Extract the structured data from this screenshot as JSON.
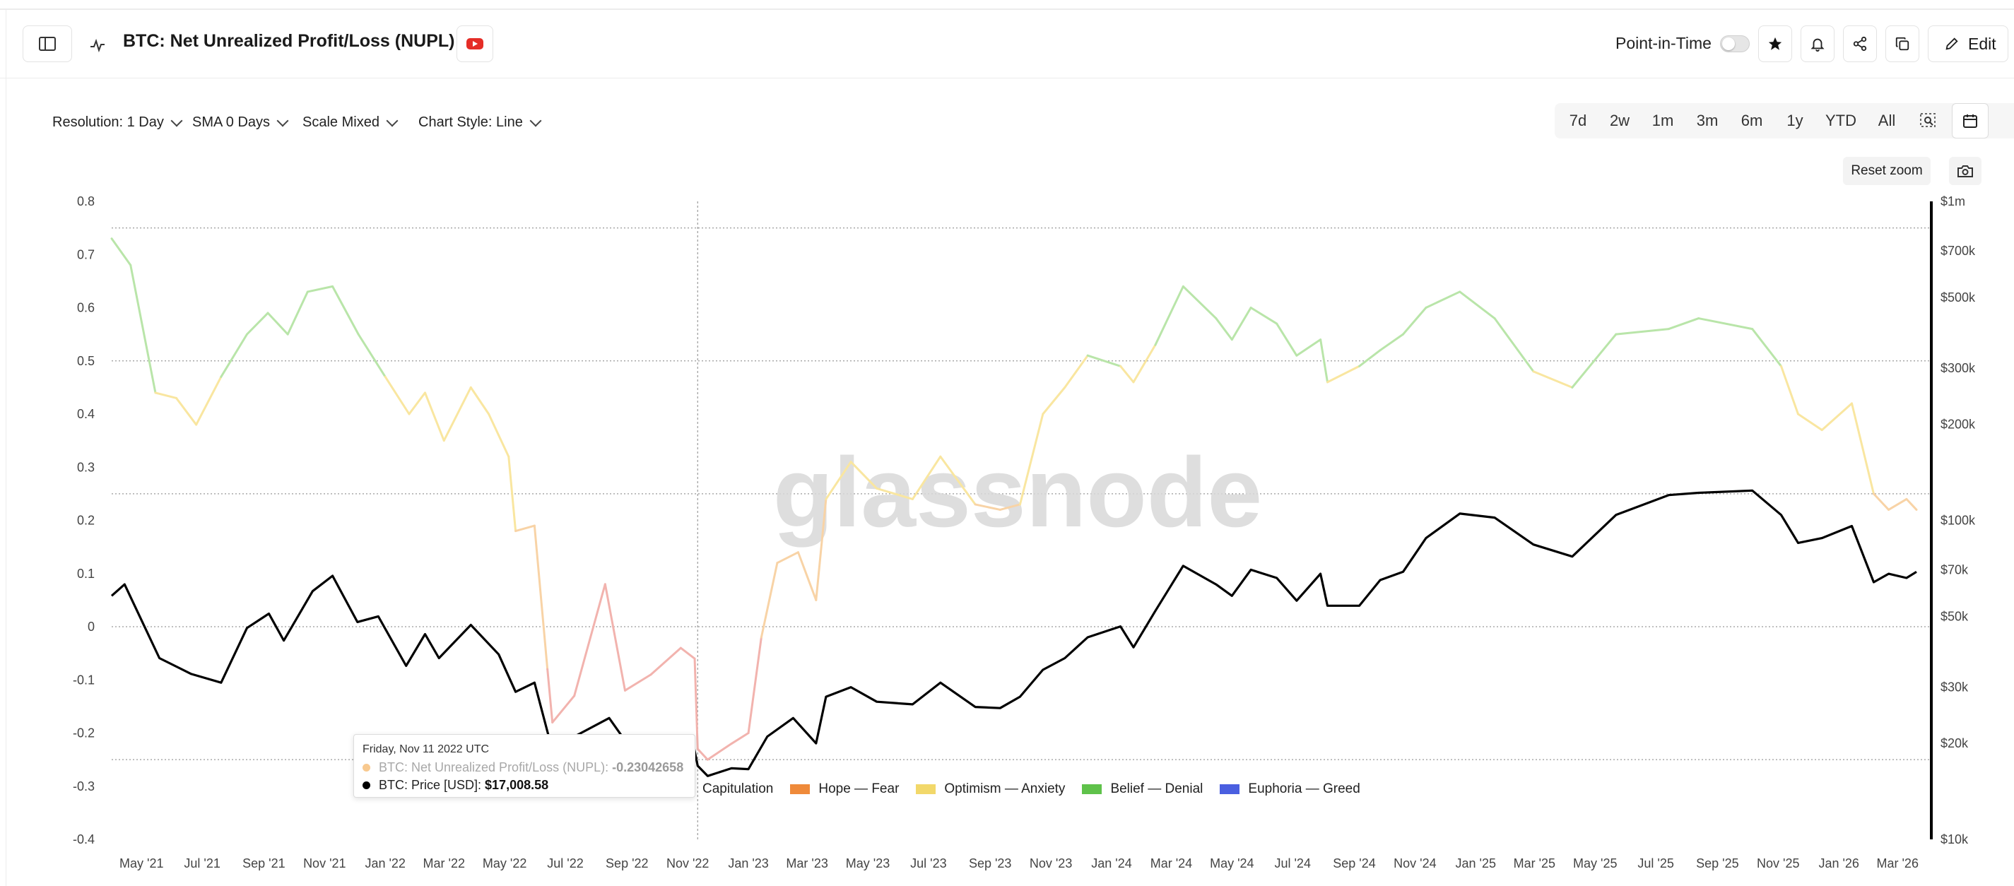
{
  "header": {
    "title": "BTC: Net Unrealized Profit/Loss (NUPL)",
    "point_in_time_label": "Point-in-Time",
    "point_in_time_on": false,
    "edit_label": "Edit"
  },
  "controls": {
    "resolution": "Resolution: 1 Day",
    "sma": "SMA 0 Days",
    "scale": "Scale Mixed",
    "chart_style": "Chart Style: Line"
  },
  "ranges": [
    "7d",
    "2w",
    "1m",
    "3m",
    "6m",
    "1y",
    "YTD",
    "All"
  ],
  "reset_zoom_label": "Reset zoom",
  "watermark": "glassnode",
  "tooltip": {
    "date": "Friday, Nov 11 2022 UTC",
    "nupl_label": "BTC: Net Unrealized Profit/Loss (NUPL):",
    "nupl_value": "-0.23042658",
    "price_label": "BTC: Price [USD]:",
    "price_value": "$17,008.58"
  },
  "legend": [
    {
      "label": "Capitulation",
      "color": "#e06c6c"
    },
    {
      "label": "Hope — Fear",
      "color": "#ef8a3a"
    },
    {
      "label": "Optimism — Anxiety",
      "color": "#f2d86a"
    },
    {
      "label": "Belief — Denial",
      "color": "#5fc24a"
    },
    {
      "label": "Euphoria — Greed",
      "color": "#4a5fe0"
    }
  ],
  "colors": {
    "price_line": "#000000",
    "capitulation": "#f2b3ae",
    "hope": "#f8d3a6",
    "optimism": "#f9e6a0",
    "belief": "#b9e5a9",
    "accent_youtube": "#e52d27"
  },
  "chart_data": {
    "type": "line",
    "title": "BTC: Net Unrealized Profit/Loss (NUPL)",
    "x_tick_labels": [
      "May '21",
      "Jul '21",
      "Sep '21",
      "Nov '21",
      "Jan '22",
      "Mar '22",
      "May '22",
      "Jul '22",
      "Sep '22",
      "Nov '22",
      "Jan '23",
      "Mar '23",
      "May '23",
      "Jul '23",
      "Sep '23",
      "Nov '23",
      "Jan '24",
      "Mar '24",
      "May '24",
      "Jul '24",
      "Sep '24",
      "Nov '24",
      "Jan '25",
      "Mar '25",
      "May '25",
      "Jul '25",
      "Sep '25",
      "Nov '25",
      "Jan '26",
      "Mar '26"
    ],
    "x_range": [
      "2021-04-01",
      "2026-03-20"
    ],
    "y_left": {
      "range": [
        -0.4,
        0.8
      ],
      "tick_labels": [
        "0.8",
        "0.7",
        "0.6",
        "0.5",
        "0.4",
        "0.3",
        "0.2",
        "0.1",
        "0",
        "-0.1",
        "-0.2",
        "-0.3",
        "-0.4"
      ]
    },
    "y_right": {
      "scale": "log",
      "range": [
        10000,
        1000000
      ],
      "tick_labels": [
        "$1m",
        "$700k",
        "$500k",
        "$300k",
        "$200k",
        "$100k",
        "$70k",
        "$50k",
        "$30k",
        "$20k",
        "$10k"
      ]
    },
    "reference_lines_left": [
      0.75,
      0.5,
      0.25,
      0,
      -0.25
    ],
    "grid": false,
    "series": [
      {
        "name": "BTC: Net Unrealized Profit/Loss (NUPL)",
        "axis": "left",
        "x": [
          "2021-04-01",
          "2021-04-20",
          "2021-05-15",
          "2021-06-05",
          "2021-06-25",
          "2021-07-20",
          "2021-08-15",
          "2021-09-05",
          "2021-09-25",
          "2021-10-15",
          "2021-11-09",
          "2021-12-05",
          "2022-01-01",
          "2022-01-25",
          "2022-02-10",
          "2022-03-01",
          "2022-03-28",
          "2022-04-15",
          "2022-05-05",
          "2022-05-12",
          "2022-05-31",
          "2022-06-13",
          "2022-06-18",
          "2022-07-10",
          "2022-08-10",
          "2022-08-30",
          "2022-09-25",
          "2022-10-25",
          "2022-11-08",
          "2022-11-11",
          "2022-11-21",
          "2022-12-15",
          "2023-01-01",
          "2023-01-14",
          "2023-01-30",
          "2023-02-20",
          "2023-03-10",
          "2023-03-20",
          "2023-04-14",
          "2023-05-10",
          "2023-06-15",
          "2023-07-13",
          "2023-08-17",
          "2023-09-11",
          "2023-10-01",
          "2023-10-24",
          "2023-11-15",
          "2023-12-08",
          "2024-01-10",
          "2024-01-23",
          "2024-02-14",
          "2024-03-13",
          "2024-04-15",
          "2024-05-01",
          "2024-05-20",
          "2024-06-15",
          "2024-07-05",
          "2024-07-29",
          "2024-08-05",
          "2024-09-06",
          "2024-09-27",
          "2024-10-20",
          "2024-11-12",
          "2024-12-16",
          "2025-01-20",
          "2025-02-28",
          "2025-04-08",
          "2025-05-22",
          "2025-07-14",
          "2025-08-13",
          "2025-10-06",
          "2025-11-04",
          "2025-11-21",
          "2025-12-15",
          "2026-01-14",
          "2026-02-05",
          "2026-02-20",
          "2026-03-10",
          "2026-03-20"
        ],
        "values": [
          0.73,
          0.68,
          0.44,
          0.43,
          0.38,
          0.47,
          0.55,
          0.59,
          0.55,
          0.63,
          0.64,
          0.55,
          0.47,
          0.4,
          0.44,
          0.35,
          0.45,
          0.4,
          0.32,
          0.18,
          0.19,
          -0.08,
          -0.18,
          -0.13,
          0.08,
          -0.12,
          -0.09,
          -0.04,
          -0.06,
          -0.23,
          -0.25,
          -0.22,
          -0.2,
          -0.02,
          0.12,
          0.14,
          0.05,
          0.24,
          0.31,
          0.26,
          0.24,
          0.32,
          0.23,
          0.22,
          0.23,
          0.4,
          0.45,
          0.51,
          0.49,
          0.46,
          0.53,
          0.64,
          0.58,
          0.54,
          0.6,
          0.57,
          0.51,
          0.54,
          0.46,
          0.49,
          0.52,
          0.55,
          0.6,
          0.63,
          0.58,
          0.48,
          0.45,
          0.55,
          0.56,
          0.58,
          0.56,
          0.49,
          0.4,
          0.37,
          0.42,
          0.25,
          0.22,
          0.24,
          0.22
        ]
      },
      {
        "name": "BTC: Price [USD]",
        "axis": "right",
        "x": [
          "2021-04-01",
          "2021-04-14",
          "2021-05-19",
          "2021-06-20",
          "2021-07-20",
          "2021-08-15",
          "2021-09-06",
          "2021-09-21",
          "2021-10-20",
          "2021-11-09",
          "2021-12-04",
          "2021-12-25",
          "2022-01-22",
          "2022-02-10",
          "2022-02-24",
          "2022-03-28",
          "2022-04-25",
          "2022-05-12",
          "2022-05-31",
          "2022-06-18",
          "2022-07-10",
          "2022-08-14",
          "2022-09-06",
          "2022-10-15",
          "2022-11-05",
          "2022-11-11",
          "2022-11-21",
          "2022-12-15",
          "2023-01-01",
          "2023-01-20",
          "2023-02-15",
          "2023-03-10",
          "2023-03-20",
          "2023-04-14",
          "2023-05-10",
          "2023-06-15",
          "2023-07-13",
          "2023-08-17",
          "2023-09-11",
          "2023-10-01",
          "2023-10-24",
          "2023-11-15",
          "2023-12-08",
          "2024-01-10",
          "2024-01-23",
          "2024-02-14",
          "2024-03-13",
          "2024-04-15",
          "2024-05-01",
          "2024-05-20",
          "2024-06-15",
          "2024-07-05",
          "2024-07-29",
          "2024-08-05",
          "2024-09-06",
          "2024-09-27",
          "2024-10-20",
          "2024-11-12",
          "2024-12-16",
          "2025-01-20",
          "2025-02-28",
          "2025-04-08",
          "2025-05-22",
          "2025-07-14",
          "2025-08-13",
          "2025-10-06",
          "2025-11-04",
          "2025-11-21",
          "2025-12-15",
          "2026-01-14",
          "2026-02-05",
          "2026-02-20",
          "2026-03-10",
          "2026-03-20"
        ],
        "values": [
          58000,
          63000,
          37000,
          33000,
          31000,
          46000,
          51000,
          42000,
          60000,
          67000,
          48000,
          50000,
          35000,
          44000,
          37000,
          47000,
          38000,
          29000,
          31000,
          19000,
          21000,
          24000,
          19000,
          19200,
          21000,
          17008,
          15800,
          16700,
          16600,
          21000,
          24000,
          20000,
          28000,
          30000,
          27000,
          26500,
          31000,
          26000,
          25800,
          28000,
          34000,
          37000,
          43000,
          46500,
          40000,
          52000,
          72000,
          63000,
          58000,
          70000,
          66000,
          56000,
          68000,
          54000,
          54000,
          65000,
          69000,
          88000,
          105000,
          102000,
          84000,
          77000,
          104000,
          120000,
          122000,
          124000,
          104000,
          85000,
          88000,
          96000,
          64000,
          68000,
          66000,
          69000
        ]
      }
    ]
  }
}
